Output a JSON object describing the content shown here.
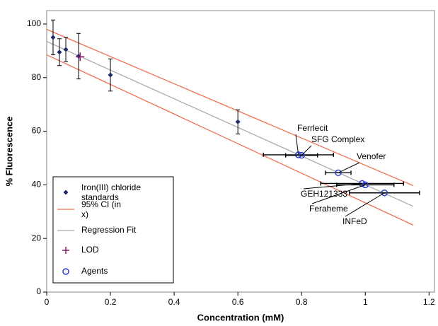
{
  "chart_data": {
    "type": "scatter",
    "x_label": "Concentration (mM)",
    "y_label": "% Fluorescence",
    "xlim": [
      0,
      1.217
    ],
    "ylim": [
      0,
      105
    ],
    "xticks": [
      0,
      0.2,
      0.4,
      0.6,
      0.8,
      1,
      1.2
    ],
    "yticks": [
      0,
      20,
      40,
      60,
      80,
      100
    ],
    "series": [
      {
        "name": "Iron(III) chloride standards",
        "kind": "points",
        "marker": "diamond",
        "color": "#1f2a6b",
        "x": [
          0.02,
          0.04,
          0.06,
          0.1,
          0.2,
          0.6
        ],
        "values": [
          95,
          89.5,
          90.5,
          88,
          81,
          63.5
        ],
        "yerr": [
          6.5,
          5,
          4.5,
          8.5,
          6,
          4.5
        ]
      },
      {
        "name": "95% CI (in x)",
        "kind": "band-lines",
        "color": "#f07050",
        "x": [
          0,
          1.15
        ],
        "upper": [
          98,
          39.7
        ],
        "lower": [
          88.5,
          25
        ]
      },
      {
        "name": "Regression Fit",
        "kind": "line",
        "color": "#aaaaaa",
        "x": [
          0,
          1.15
        ],
        "values": [
          93.5,
          32
        ]
      },
      {
        "name": "LOD",
        "kind": "points",
        "marker": "plus",
        "color": "#8b1a6b",
        "x": [
          0.105
        ],
        "values": [
          87.8
        ]
      },
      {
        "name": "Agents",
        "kind": "points",
        "marker": "circle",
        "color": "#2a3fd0",
        "x": [
          0.79,
          0.8,
          0.915,
          0.99,
          1.0,
          1.06
        ],
        "values": [
          51.2,
          51,
          44.5,
          40.5,
          40,
          37
        ],
        "xerr": [
          0.11,
          0.05,
          0.04,
          0.13,
          0.09,
          0.11
        ],
        "labels": [
          "Ferrlecit",
          "SFG Complex",
          "Venofer",
          "GEH121333",
          "Feraheme",
          "INFeD"
        ]
      }
    ]
  }
}
